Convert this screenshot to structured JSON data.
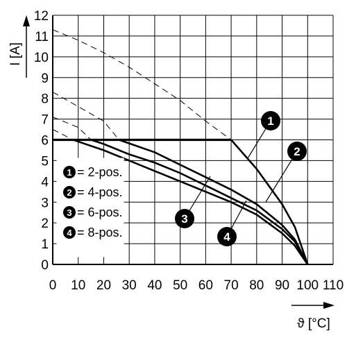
{
  "chart_data": {
    "type": "line",
    "xlabel": "ϑ [°C]",
    "ylabel": "I [A]",
    "xlim": [
      0,
      110
    ],
    "ylim": [
      0,
      12
    ],
    "xticks": [
      "0",
      "10",
      "20",
      "30",
      "40",
      "50",
      "60",
      "70",
      "80",
      "90",
      "100",
      "110"
    ],
    "yticks": [
      "0",
      "1",
      "2",
      "3",
      "4",
      "5",
      "6",
      "7",
      "8",
      "9",
      "10",
      "11",
      "12"
    ],
    "grid": true,
    "legend_position": "lower-left",
    "current_limit": 6,
    "series": [
      {
        "name": "2-pos.",
        "badge": "1",
        "limit_x": 70,
        "values": [
          [
            0,
            11.3
          ],
          [
            10,
            10.8
          ],
          [
            20,
            10.2
          ],
          [
            30,
            9.5
          ],
          [
            40,
            8.7
          ],
          [
            50,
            7.9
          ],
          [
            60,
            6.9
          ],
          [
            70,
            6.0
          ],
          [
            80,
            4.6
          ],
          [
            90,
            2.9
          ],
          [
            95,
            1.8
          ],
          [
            100,
            0
          ]
        ]
      },
      {
        "name": "4-pos.",
        "badge": "2",
        "limit_x": 26,
        "values": [
          [
            0,
            8.3
          ],
          [
            10,
            7.6
          ],
          [
            20,
            6.9
          ],
          [
            26,
            6.0
          ],
          [
            40,
            5.4
          ],
          [
            50,
            4.8
          ],
          [
            60,
            4.2
          ],
          [
            70,
            3.6
          ],
          [
            80,
            2.9
          ],
          [
            90,
            1.9
          ],
          [
            95,
            1.2
          ],
          [
            100,
            0
          ]
        ]
      },
      {
        "name": "6-pos.",
        "badge": "3",
        "limit_x": 15,
        "values": [
          [
            0,
            7.1
          ],
          [
            10,
            6.6
          ],
          [
            15,
            6.0
          ],
          [
            20,
            5.8
          ],
          [
            30,
            5.3
          ],
          [
            40,
            4.9
          ],
          [
            50,
            4.4
          ],
          [
            60,
            3.8
          ],
          [
            70,
            3.2
          ],
          [
            80,
            2.6
          ],
          [
            90,
            1.7
          ],
          [
            95,
            1.1
          ],
          [
            100,
            0
          ]
        ]
      },
      {
        "name": "8-pos.",
        "badge": "4",
        "limit_x": 8,
        "values": [
          [
            0,
            6.5
          ],
          [
            8,
            6.0
          ],
          [
            20,
            5.5
          ],
          [
            30,
            5.0
          ],
          [
            40,
            4.5
          ],
          [
            50,
            4.0
          ],
          [
            60,
            3.5
          ],
          [
            70,
            3.0
          ],
          [
            80,
            2.4
          ],
          [
            90,
            1.5
          ],
          [
            95,
            0.9
          ],
          [
            100,
            0
          ]
        ]
      }
    ],
    "legend": [
      {
        "badge": "1",
        "label": "= 2-pos."
      },
      {
        "badge": "2",
        "label": "= 4-pos."
      },
      {
        "badge": "3",
        "label": "= 6-pos."
      },
      {
        "badge": "4",
        "label": "= 8-pos."
      }
    ]
  }
}
